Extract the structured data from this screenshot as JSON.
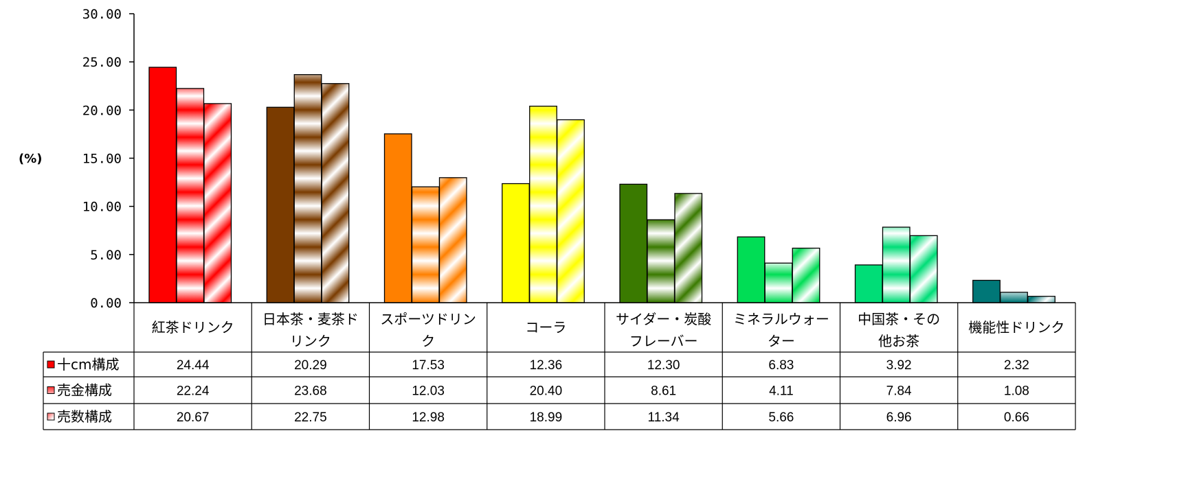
{
  "chart_data": {
    "type": "bar",
    "ylabel": "(%)",
    "ylim": [
      0,
      30
    ],
    "ytick_step": 5,
    "ytick_labels": [
      "0.00",
      "5.00",
      "10.00",
      "15.00",
      "20.00",
      "25.00",
      "30.00"
    ],
    "categories": [
      [
        "紅茶ドリンク"
      ],
      [
        "日本茶・麦茶ド",
        "リンク"
      ],
      [
        "スポーツドリン",
        "ク"
      ],
      [
        "コーラ"
      ],
      [
        "サイダー・炭酸",
        "フレーバー"
      ],
      [
        "ミネラルウォー",
        "ター"
      ],
      [
        "中国茶・その",
        "他お茶"
      ],
      [
        "機能性ドリンク"
      ]
    ],
    "category_colors": [
      "#ff0000",
      "#7a3b00",
      "#ff8000",
      "#ffff00",
      "#3a7a00",
      "#00dd55",
      "#00dd77",
      "#007777"
    ],
    "series": [
      {
        "name": "十cm構成",
        "pattern": "solid",
        "values": [
          24.44,
          20.29,
          17.53,
          12.36,
          12.3,
          6.83,
          3.92,
          2.32
        ],
        "labels": [
          "24.44",
          "20.29",
          "17.53",
          "12.36",
          "12.30",
          "6.83",
          "3.92",
          "2.32"
        ]
      },
      {
        "name": "売金構成",
        "pattern": "horizontal-gradient",
        "values": [
          22.24,
          23.68,
          12.03,
          20.4,
          8.61,
          4.11,
          7.84,
          1.08
        ],
        "labels": [
          "22.24",
          "23.68",
          "12.03",
          "20.40",
          "8.61",
          "4.11",
          "7.84",
          "1.08"
        ]
      },
      {
        "name": "売数構成",
        "pattern": "diagonal-gradient",
        "values": [
          20.67,
          22.75,
          12.98,
          18.99,
          11.34,
          5.66,
          6.96,
          0.66
        ],
        "labels": [
          "20.67",
          "22.75",
          "12.98",
          "18.99",
          "11.34",
          "5.66",
          "6.96",
          "0.66"
        ]
      }
    ],
    "legend_placement": "table-left",
    "grid": false
  }
}
